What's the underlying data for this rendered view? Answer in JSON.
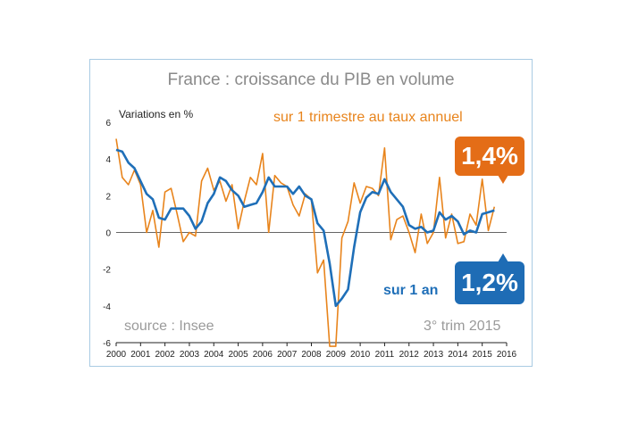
{
  "chart_data": {
    "type": "line",
    "title": "France : croissance du PIB en volume",
    "ylabel": "Variations en %",
    "source": "source : Insee",
    "period": "3° trim 2015",
    "ylim": [
      -6,
      6
    ],
    "yticks": [
      "6",
      "4",
      "2",
      "0",
      "-2",
      "-4",
      "-6"
    ],
    "xlim": [
      2000,
      2016
    ],
    "xticks": [
      "2000",
      "2001",
      "2002",
      "2003",
      "2004",
      "2005",
      "2006",
      "2007",
      "2008",
      "2009",
      "2010",
      "2011",
      "2012",
      "2013",
      "2014",
      "2015",
      "2016"
    ],
    "series": [
      {
        "name": "sur 1 trimestre au taux annuel",
        "color": "#e8841c",
        "callout": "1,4%",
        "x": [
          2000.0,
          2000.25,
          2000.5,
          2000.75,
          2001.0,
          2001.25,
          2001.5,
          2001.75,
          2002.0,
          2002.25,
          2002.5,
          2002.75,
          2003.0,
          2003.25,
          2003.5,
          2003.75,
          2004.0,
          2004.25,
          2004.5,
          2004.75,
          2005.0,
          2005.25,
          2005.5,
          2005.75,
          2006.0,
          2006.25,
          2006.5,
          2006.75,
          2007.0,
          2007.25,
          2007.5,
          2007.75,
          2008.0,
          2008.25,
          2008.5,
          2008.75,
          2009.0,
          2009.25,
          2009.5,
          2009.75,
          2010.0,
          2010.25,
          2010.5,
          2010.75,
          2011.0,
          2011.25,
          2011.5,
          2011.75,
          2012.0,
          2012.25,
          2012.5,
          2012.75,
          2013.0,
          2013.25,
          2013.5,
          2013.75,
          2014.0,
          2014.25,
          2014.5,
          2014.75,
          2015.0,
          2015.25,
          2015.5
        ],
        "y": [
          5.1,
          3.0,
          2.6,
          3.4,
          2.6,
          0.0,
          1.2,
          -0.8,
          2.2,
          2.4,
          1.0,
          -0.5,
          0.0,
          -0.2,
          2.8,
          3.5,
          2.3,
          2.8,
          1.7,
          2.6,
          0.2,
          1.7,
          3.0,
          2.6,
          4.3,
          0.0,
          3.1,
          2.7,
          2.5,
          1.5,
          0.9,
          2.1,
          1.8,
          -2.2,
          -1.5,
          -6.2,
          -6.2,
          -0.3,
          0.6,
          2.7,
          1.6,
          2.5,
          2.4,
          2.0,
          4.6,
          -0.4,
          0.7,
          0.9,
          0.0,
          -1.1,
          1.0,
          -0.6,
          0.0,
          3.0,
          -0.3,
          1.0,
          -0.6,
          -0.5,
          1.0,
          0.4,
          2.9,
          0.1,
          1.4
        ]
      },
      {
        "name": "sur 1 an",
        "color": "#1f6fb8",
        "callout": "1,2%",
        "x": [
          2000.0,
          2000.25,
          2000.5,
          2000.75,
          2001.0,
          2001.25,
          2001.5,
          2001.75,
          2002.0,
          2002.25,
          2002.5,
          2002.75,
          2003.0,
          2003.25,
          2003.5,
          2003.75,
          2004.0,
          2004.25,
          2004.5,
          2004.75,
          2005.0,
          2005.25,
          2005.5,
          2005.75,
          2006.0,
          2006.25,
          2006.5,
          2006.75,
          2007.0,
          2007.25,
          2007.5,
          2007.75,
          2008.0,
          2008.25,
          2008.5,
          2008.75,
          2009.0,
          2009.25,
          2009.5,
          2009.75,
          2010.0,
          2010.25,
          2010.5,
          2010.75,
          2011.0,
          2011.25,
          2011.5,
          2011.75,
          2012.0,
          2012.25,
          2012.5,
          2012.75,
          2013.0,
          2013.25,
          2013.5,
          2013.75,
          2014.0,
          2014.25,
          2014.5,
          2014.75,
          2015.0,
          2015.25,
          2015.5
        ],
        "y": [
          4.5,
          4.4,
          3.8,
          3.5,
          2.8,
          2.1,
          1.8,
          0.8,
          0.7,
          1.3,
          1.3,
          1.3,
          0.9,
          0.2,
          0.6,
          1.6,
          2.1,
          3.0,
          2.8,
          2.3,
          2.0,
          1.4,
          1.5,
          1.6,
          2.2,
          3.0,
          2.5,
          2.5,
          2.5,
          2.1,
          2.5,
          2.0,
          1.8,
          0.5,
          0.1,
          -1.7,
          -4.0,
          -3.6,
          -3.1,
          -0.8,
          1.1,
          1.9,
          2.2,
          2.1,
          2.9,
          2.2,
          1.8,
          1.4,
          0.4,
          0.2,
          0.3,
          0.0,
          0.1,
          1.1,
          0.7,
          0.9,
          0.6,
          -0.1,
          0.1,
          0.0,
          1.0,
          1.1,
          1.2
        ]
      }
    ]
  }
}
